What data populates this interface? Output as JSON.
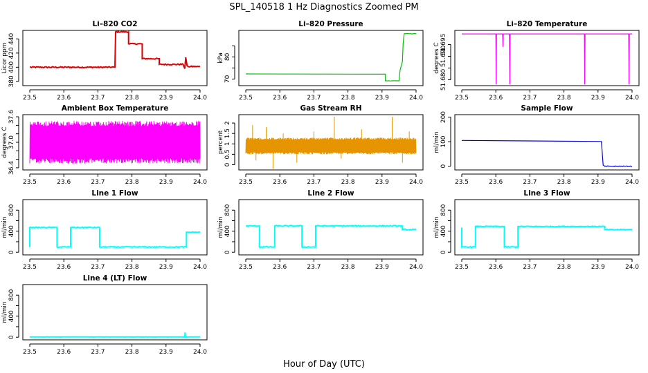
{
  "figure": {
    "title": "SPL_140518  1 Hz Diagnostics Zoomed PM",
    "xlabel": "Hour of Day (UTC)"
  },
  "chart_data": [
    {
      "type": "line",
      "title": "Li–820 CO2",
      "ylabel": "Licor ppm",
      "color": "#e00000",
      "xlim": [
        23.5,
        24.0
      ],
      "ylim": [
        374,
        452
      ],
      "xticks": [
        "23.5",
        "23.6",
        "23.7",
        "23.8",
        "23.9",
        "24.0"
      ],
      "yticks": [
        380,
        400,
        420,
        440
      ],
      "points": [
        [
          23.5,
          400
        ],
        [
          23.75,
          400
        ],
        [
          23.752,
          450
        ],
        [
          23.79,
          450
        ],
        [
          23.79,
          433
        ],
        [
          23.83,
          433
        ],
        [
          23.83,
          412
        ],
        [
          23.88,
          412
        ],
        [
          23.88,
          404
        ],
        [
          23.95,
          404
        ],
        [
          23.955,
          398
        ],
        [
          23.958,
          414
        ],
        [
          23.962,
          402
        ],
        [
          23.965,
          401
        ],
        [
          24.0,
          401
        ]
      ],
      "noise": 0.8
    },
    {
      "type": "line",
      "title": "Li–820 Pressure",
      "ylabel": "kPa",
      "color": "#00c000",
      "xlim": [
        23.5,
        24.0
      ],
      "ylim": [
        67,
        92
      ],
      "xticks": [
        "23.5",
        "23.6",
        "23.7",
        "23.8",
        "23.9",
        "24.0"
      ],
      "yticks": [
        70,
        75,
        80,
        85
      ],
      "yticklabels": [
        "70",
        "",
        "80",
        ""
      ],
      "points": [
        [
          23.5,
          72.3
        ],
        [
          23.91,
          72.2
        ],
        [
          23.91,
          69.2
        ],
        [
          23.95,
          69.2
        ],
        [
          23.953,
          74
        ],
        [
          23.96,
          78
        ],
        [
          23.962,
          86
        ],
        [
          23.965,
          90.5
        ],
        [
          24.0,
          90.5
        ]
      ],
      "noise": 0.1
    },
    {
      "type": "line",
      "title": "Li–820 Temperature",
      "ylabel": "degrees C",
      "color": "#ff00ff",
      "xlim": [
        23.5,
        24.0
      ],
      "ylim": [
        51.6775,
        51.701
      ],
      "xticks": [
        "23.5",
        "23.6",
        "23.7",
        "23.8",
        "23.9",
        "24.0"
      ],
      "yticks": [
        51.68,
        51.685,
        51.69,
        51.695
      ],
      "yticklabels": [
        "51.680",
        "",
        "51.690",
        "51.695"
      ],
      "points": [
        [
          23.5,
          51.6995
        ],
        [
          23.6,
          51.6995
        ],
        [
          23.601,
          51.678
        ],
        [
          23.602,
          51.6995
        ],
        [
          23.62,
          51.6995
        ],
        [
          23.621,
          51.694
        ],
        [
          23.622,
          51.6995
        ],
        [
          23.64,
          51.6995
        ],
        [
          23.641,
          51.678
        ],
        [
          23.642,
          51.6995
        ],
        [
          23.86,
          51.6995
        ],
        [
          23.861,
          51.678
        ],
        [
          23.862,
          51.6995
        ],
        [
          23.99,
          51.6995
        ],
        [
          23.991,
          51.678
        ],
        [
          23.992,
          51.6995
        ],
        [
          24.0,
          51.6995
        ]
      ],
      "noise": 0
    },
    {
      "type": "line",
      "title": "Ambient Box Temperature",
      "ylabel": "degrees C",
      "color": "#ff00ff",
      "xlim": [
        23.5,
        24.0
      ],
      "ylim": [
        36.35,
        37.65
      ],
      "xticks": [
        "23.5",
        "23.6",
        "23.7",
        "23.8",
        "23.9",
        "24.0"
      ],
      "yticks": [
        36.4,
        36.6,
        36.8,
        37.0,
        37.2,
        37.4,
        37.6
      ],
      "yticklabels": [
        "36.4",
        "",
        "",
        "37.0",
        "",
        "",
        "37.6"
      ],
      "points": [
        [
          23.5,
          37.0
        ],
        [
          24.0,
          37.0
        ]
      ],
      "osc": [
        36.5,
        37.5
      ]
    },
    {
      "type": "line",
      "title": "Gas Stream RH",
      "ylabel": "percent",
      "color": "#e69500",
      "xlim": [
        23.5,
        24.0
      ],
      "ylim": [
        -0.25,
        2.4
      ],
      "xticks": [
        "23.5",
        "23.6",
        "23.7",
        "23.8",
        "23.9",
        "24.0"
      ],
      "yticks": [
        0.0,
        0.5,
        1.0,
        1.5,
        2.0
      ],
      "points": [
        [
          23.5,
          0.9
        ],
        [
          24.0,
          0.9
        ]
      ],
      "osc": [
        0.5,
        1.3
      ],
      "spikes": [
        [
          23.52,
          1.9
        ],
        [
          23.53,
          0.2
        ],
        [
          23.56,
          1.8
        ],
        [
          23.58,
          -0.2
        ],
        [
          23.61,
          1.5
        ],
        [
          23.65,
          0.1
        ],
        [
          23.7,
          1.6
        ],
        [
          23.76,
          2.3
        ],
        [
          23.78,
          0.3
        ],
        [
          23.84,
          1.7
        ],
        [
          23.93,
          2.3
        ],
        [
          23.96,
          0.1
        ],
        [
          23.98,
          1.6
        ]
      ]
    },
    {
      "type": "line",
      "title": "Sample Flow",
      "ylabel": "ml/min",
      "color": "#0000cc",
      "xlim": [
        23.5,
        24.0
      ],
      "ylim": [
        -15,
        210
      ],
      "xticks": [
        "23.5",
        "23.6",
        "23.7",
        "23.8",
        "23.9",
        "24.0"
      ],
      "yticks": [
        0,
        100,
        200
      ],
      "points": [
        [
          23.5,
          105
        ],
        [
          23.91,
          101
        ],
        [
          23.915,
          5
        ],
        [
          23.92,
          0
        ],
        [
          24.0,
          0
        ]
      ],
      "noise": 1.5
    },
    {
      "type": "line",
      "title": "Line 1 Flow",
      "ylabel": "ml/min",
      "color": "#00ffff",
      "xlim": [
        23.5,
        24.0
      ],
      "ylim": [
        -50,
        1000
      ],
      "xticks": [
        "23.5",
        "23.6",
        "23.7",
        "23.8",
        "23.9",
        "24.0"
      ],
      "yticks": [
        0,
        200,
        400,
        600,
        800
      ],
      "yticklabels": [
        "0",
        "",
        "400",
        "",
        "800"
      ],
      "points": [
        [
          23.5,
          100
        ],
        [
          23.5,
          470
        ],
        [
          23.58,
          470
        ],
        [
          23.58,
          100
        ],
        [
          23.62,
          100
        ],
        [
          23.62,
          470
        ],
        [
          23.705,
          470
        ],
        [
          23.705,
          100
        ],
        [
          23.96,
          100
        ],
        [
          23.96,
          380
        ],
        [
          24.0,
          380
        ]
      ],
      "noise": 8
    },
    {
      "type": "line",
      "title": "Line 2 Flow",
      "ylabel": "ml/min",
      "color": "#00ffff",
      "xlim": [
        23.5,
        24.0
      ],
      "ylim": [
        -50,
        1000
      ],
      "xticks": [
        "23.5",
        "23.6",
        "23.7",
        "23.8",
        "23.9",
        "24.0"
      ],
      "yticks": [
        0,
        200,
        400,
        600,
        800
      ],
      "yticklabels": [
        "0",
        "",
        "400",
        "",
        "800"
      ],
      "points": [
        [
          23.5,
          500
        ],
        [
          23.54,
          500
        ],
        [
          23.54,
          100
        ],
        [
          23.585,
          100
        ],
        [
          23.585,
          500
        ],
        [
          23.665,
          500
        ],
        [
          23.665,
          100
        ],
        [
          23.705,
          100
        ],
        [
          23.705,
          500
        ],
        [
          23.96,
          500
        ],
        [
          23.96,
          430
        ],
        [
          24.0,
          430
        ]
      ],
      "noise": 10
    },
    {
      "type": "line",
      "title": "Line 3 Flow",
      "ylabel": "ml/min",
      "color": "#00ffff",
      "xlim": [
        23.5,
        24.0
      ],
      "ylim": [
        -50,
        1000
      ],
      "xticks": [
        "23.5",
        "23.6",
        "23.7",
        "23.8",
        "23.9",
        "24.0"
      ],
      "yticks": [
        0,
        200,
        400,
        600,
        800
      ],
      "yticklabels": [
        "0",
        "",
        "400",
        "",
        "800"
      ],
      "points": [
        [
          23.5,
          470
        ],
        [
          23.5,
          100
        ],
        [
          23.54,
          100
        ],
        [
          23.54,
          490
        ],
        [
          23.625,
          490
        ],
        [
          23.625,
          100
        ],
        [
          23.665,
          100
        ],
        [
          23.665,
          490
        ],
        [
          23.92,
          490
        ],
        [
          23.92,
          430
        ],
        [
          24.0,
          430
        ]
      ],
      "noise": 8
    },
    {
      "type": "line",
      "title": "Line 4 (LT) Flow",
      "ylabel": "ml/min",
      "color": "#00ffff",
      "xlim": [
        23.5,
        24.0
      ],
      "ylim": [
        -50,
        1000
      ],
      "xticks": [
        "23.5",
        "23.6",
        "23.7",
        "23.8",
        "23.9",
        "24.0"
      ],
      "yticks": [
        0,
        200,
        400,
        600,
        800
      ],
      "yticklabels": [
        "0",
        "",
        "400",
        "",
        "800"
      ],
      "points": [
        [
          23.5,
          5
        ],
        [
          23.955,
          5
        ],
        [
          23.956,
          90
        ],
        [
          23.957,
          5
        ],
        [
          24.0,
          5
        ]
      ],
      "noise": 1
    }
  ]
}
